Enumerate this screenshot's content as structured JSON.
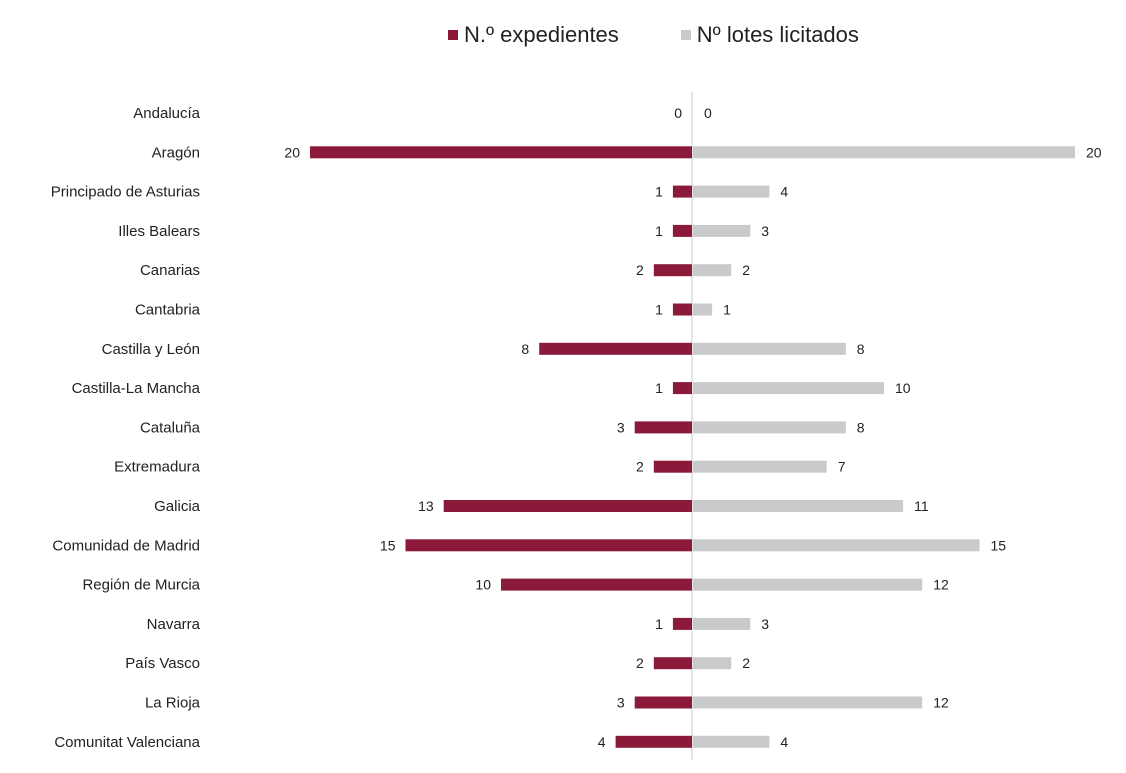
{
  "chart_data": {
    "type": "bar",
    "orientation": "horizontal-diverging",
    "categories": [
      "Andalucía",
      "Aragón",
      "Principado de Asturias",
      "Illes Balears",
      "Canarias",
      "Cantabria",
      "Castilla y León",
      "Castilla-La Mancha",
      "Cataluña",
      "Extremadura",
      "Galicia",
      "Comunidad de Madrid",
      "Región de Murcia",
      "Navarra",
      "País Vasco",
      "La Rioja",
      "Comunitat Valenciana"
    ],
    "series": [
      {
        "name": "N.º expedientes",
        "side": "left",
        "color": "#8b1a3a",
        "values": [
          0,
          20,
          1,
          1,
          2,
          1,
          8,
          1,
          3,
          2,
          13,
          15,
          10,
          1,
          2,
          3,
          4
        ]
      },
      {
        "name": "Nº lotes licitados",
        "side": "right",
        "color": "#c8cacc",
        "values": [
          0,
          20,
          4,
          3,
          2,
          1,
          8,
          10,
          8,
          7,
          11,
          15,
          12,
          3,
          2,
          12,
          4
        ]
      }
    ],
    "xlim": [
      0,
      20
    ],
    "legend_position": "top-center",
    "grid": false
  }
}
